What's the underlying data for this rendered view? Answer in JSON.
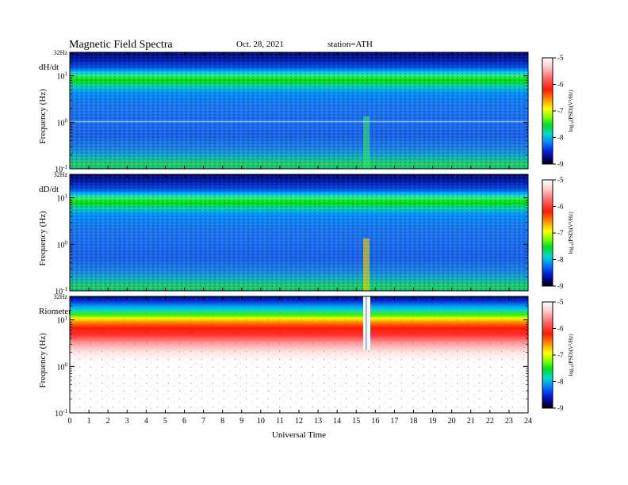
{
  "header": {
    "title": "Magnetic Field Spectra",
    "date": "Oct. 28, 2021",
    "station": "station=ATH"
  },
  "colorbar": {
    "label": "log₁₀(PSD)(V²/Hz)",
    "ticks": [
      "-5",
      "-6",
      "-7",
      "-8",
      "-9"
    ]
  },
  "chart_data": [
    {
      "type": "heatmap",
      "panel_label": "dH/dt",
      "ylabel": "Frequency (Hz)",
      "yscale": "log",
      "ylim": [
        0.1,
        32
      ],
      "y_top_label": "32Hz",
      "y_ticks": [
        {
          "base": "10",
          "exp": "1"
        },
        {
          "base": "10",
          "exp": "0"
        },
        {
          "base": "10",
          "exp": "-1"
        }
      ],
      "xlim": [
        0,
        24
      ],
      "color_range": [
        -9,
        -5
      ],
      "colormap": [
        "#000000",
        "#0000b4",
        "#0050ff",
        "#00a0ff",
        "#00e6c8",
        "#00e600",
        "#c8ff00",
        "#ffff00",
        "#ff8c00",
        "#ff0000",
        "#ff6464",
        "#ffc8c8",
        "#ffffff"
      ]
    },
    {
      "type": "heatmap",
      "panel_label": "dD/dt",
      "ylabel": "Frequency (Hz)",
      "yscale": "log",
      "ylim": [
        0.1,
        32
      ],
      "y_top_label": "32Hz",
      "y_ticks": [
        {
          "base": "10",
          "exp": "1"
        },
        {
          "base": "10",
          "exp": "0"
        },
        {
          "base": "10",
          "exp": "-1"
        }
      ],
      "xlim": [
        0,
        24
      ],
      "color_range": [
        -9,
        -5
      ]
    },
    {
      "type": "heatmap",
      "panel_label": "Riometer",
      "ylabel": "Frequency (Hz)",
      "yscale": "log",
      "ylim": [
        0.1,
        32
      ],
      "y_top_label": "32Hz",
      "y_ticks": [
        {
          "base": "10",
          "exp": "1"
        },
        {
          "base": "10",
          "exp": "0"
        },
        {
          "base": "10",
          "exp": "-1"
        }
      ],
      "xlim": [
        0,
        24
      ],
      "xlabel": "Universal Time",
      "x_ticks": [
        "0",
        "1",
        "2",
        "3",
        "4",
        "5",
        "6",
        "7",
        "8",
        "9",
        "10",
        "11",
        "12",
        "13",
        "14",
        "15",
        "16",
        "17",
        "18",
        "19",
        "20",
        "21",
        "22",
        "23",
        "24"
      ],
      "color_range": [
        -9,
        -5
      ]
    }
  ]
}
